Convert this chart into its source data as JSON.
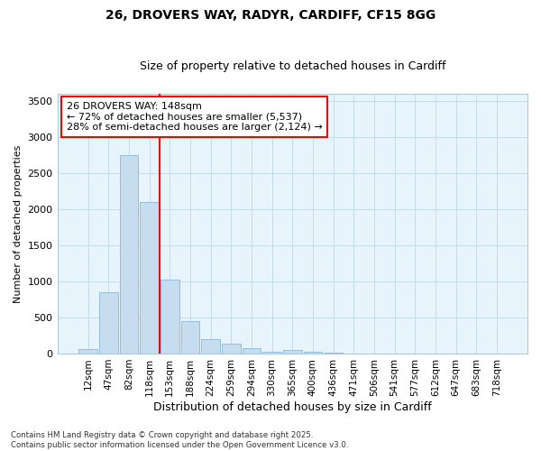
{
  "title_line1": "26, DROVERS WAY, RADYR, CARDIFF, CF15 8GG",
  "title_line2": "Size of property relative to detached houses in Cardiff",
  "xlabel": "Distribution of detached houses by size in Cardiff",
  "ylabel": "Number of detached properties",
  "bar_labels": [
    "12sqm",
    "47sqm",
    "82sqm",
    "118sqm",
    "153sqm",
    "188sqm",
    "224sqm",
    "259sqm",
    "294sqm",
    "330sqm",
    "365sqm",
    "400sqm",
    "436sqm",
    "471sqm",
    "506sqm",
    "541sqm",
    "577sqm",
    "612sqm",
    "647sqm",
    "683sqm",
    "718sqm"
  ],
  "bar_values": [
    65,
    850,
    2750,
    2100,
    1020,
    450,
    200,
    140,
    70,
    25,
    55,
    25,
    10,
    5,
    0,
    0,
    0,
    0,
    0,
    0,
    0
  ],
  "bar_color": "#c5ddef",
  "bar_edgecolor": "#8ab8d8",
  "vline_x": 4,
  "vline_color": "red",
  "annotation_text": "26 DROVERS WAY: 148sqm\n← 72% of detached houses are smaller (5,537)\n28% of semi-detached houses are larger (2,124) →",
  "annotation_box_facecolor": "white",
  "annotation_box_edgecolor": "red",
  "annotation_fontsize": 8,
  "ylim": [
    0,
    3600
  ],
  "yticks": [
    0,
    500,
    1000,
    1500,
    2000,
    2500,
    3000,
    3500
  ],
  "grid_color": "#c8dce8",
  "background_color": "#ddeef8",
  "plot_bg_color": "#e8f4fc",
  "footnote": "Contains HM Land Registry data © Crown copyright and database right 2025.\nContains public sector information licensed under the Open Government Licence v3.0.",
  "title_fontsize": 10,
  "subtitle_fontsize": 9,
  "ylabel_fontsize": 8,
  "xlabel_fontsize": 9,
  "ytick_fontsize": 8,
  "xtick_fontsize": 7.5
}
